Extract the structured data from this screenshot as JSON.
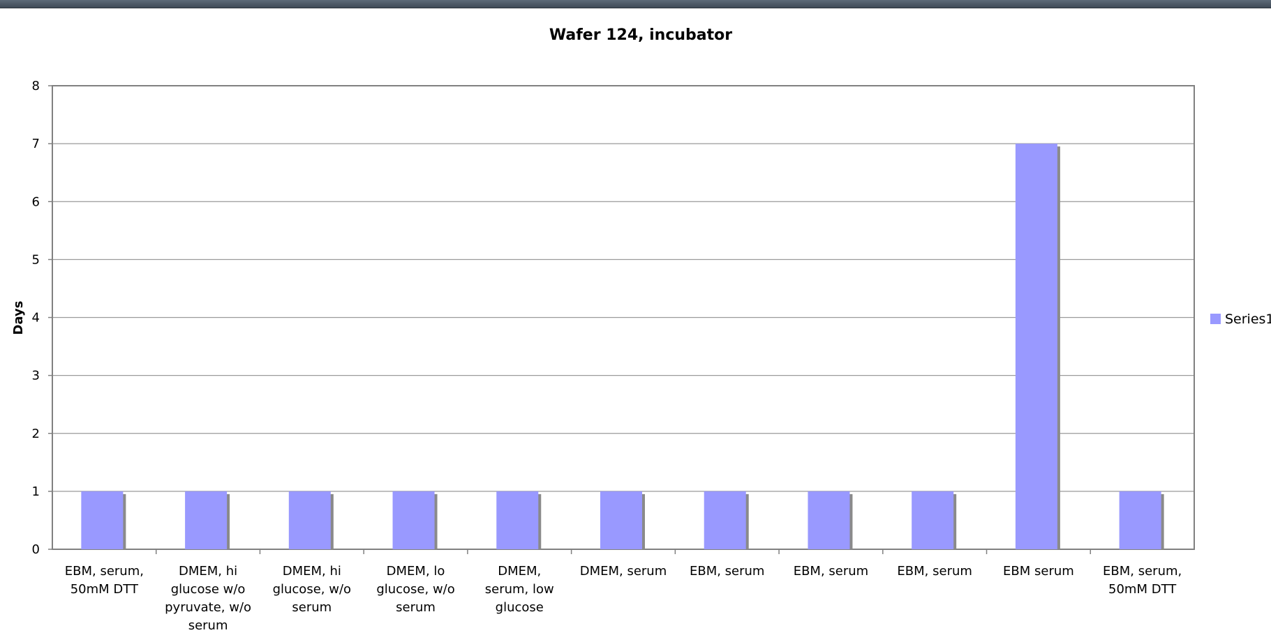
{
  "chart_data": {
    "type": "bar",
    "title": "Wafer 124, incubator",
    "xlabel": "",
    "ylabel": "Days",
    "ylim": [
      0,
      8
    ],
    "yticks": [
      0,
      1,
      2,
      3,
      4,
      5,
      6,
      7,
      8
    ],
    "grid": true,
    "legend_position": "right",
    "categories": [
      [
        "EBM, serum,",
        "50mM DTT"
      ],
      [
        "DMEM, hi",
        "glucose w/o",
        "pyruvate, w/o",
        "serum"
      ],
      [
        "DMEM, hi",
        "glucose, w/o",
        "serum"
      ],
      [
        "DMEM, lo",
        "glucose, w/o",
        "serum"
      ],
      [
        "DMEM,",
        "serum, low",
        "glucose"
      ],
      [
        "DMEM, serum"
      ],
      [
        "EBM, serum"
      ],
      [
        "EBM, serum"
      ],
      [
        "EBM, serum"
      ],
      [
        "EBM serum"
      ],
      [
        "EBM, serum,",
        "50mM DTT"
      ]
    ],
    "series": [
      {
        "name": "Series1",
        "color": "#9999ff",
        "values": [
          1,
          1,
          1,
          1,
          1,
          1,
          1,
          1,
          1,
          7,
          1
        ]
      }
    ]
  },
  "window": {
    "accent": "#4a5562"
  }
}
